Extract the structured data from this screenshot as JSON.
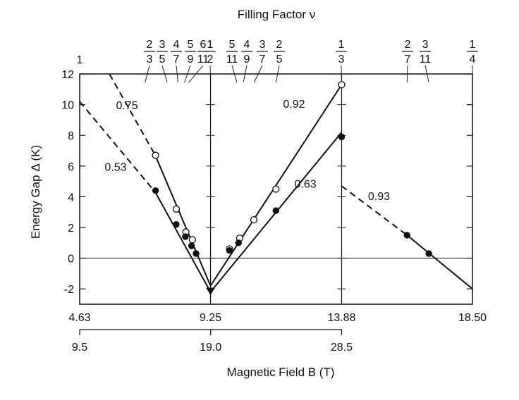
{
  "chart_data": {
    "type": "scatter",
    "title": "Filling Factor ν",
    "ylabel": "Energy Gap  Δ (K)",
    "xlabel": "Magnetic Field  B (T)",
    "ylim": [
      -3,
      12
    ],
    "yticks": [
      "-2",
      "0",
      "2",
      "4",
      "6",
      "8",
      "10",
      "12"
    ],
    "xlim_effective": [
      4.63,
      18.5
    ],
    "effective_axis_ticks": [
      "4.63",
      "9.25",
      "13.88",
      "18.50"
    ],
    "field_axis_ticks": [
      "9.5",
      "19.0",
      "28.5"
    ],
    "field_axis_range": [
      9.5,
      28.5
    ],
    "filling_factors": [
      {
        "num": "",
        "den": "",
        "whole": "1",
        "x": 4.63
      },
      {
        "num": "2",
        "den": "3",
        "x": 6.94
      },
      {
        "num": "3",
        "den": "5",
        "x": 7.72
      },
      {
        "num": "4",
        "den": "7",
        "x": 8.1
      },
      {
        "num": "5",
        "den": "9",
        "x": 8.33
      },
      {
        "num": "6",
        "den": "11",
        "x": 8.48
      },
      {
        "num": "1",
        "den": "2",
        "x": 9.25
      },
      {
        "num": "5",
        "den": "11",
        "x": 10.18
      },
      {
        "num": "4",
        "den": "9",
        "x": 10.41
      },
      {
        "num": "3",
        "den": "7",
        "x": 10.79
      },
      {
        "num": "2",
        "den": "5",
        "x": 11.56
      },
      {
        "num": "1",
        "den": "3",
        "x": 13.88
      },
      {
        "num": "2",
        "den": "7",
        "x": 16.19
      },
      {
        "num": "3",
        "den": "11",
        "x": 16.96
      },
      {
        "num": "1",
        "den": "4",
        "x": 18.5
      }
    ],
    "series": [
      {
        "marker": "open",
        "x": [
          7.31,
          8.04,
          8.38,
          8.61,
          9.92,
          10.28,
          10.78,
          11.56,
          13.88
        ],
        "y": [
          6.7,
          3.2,
          1.7,
          1.2,
          0.6,
          1.3,
          2.5,
          4.5,
          11.3
        ]
      },
      {
        "marker": "filled",
        "x": [
          7.31,
          8.04,
          8.36,
          8.58,
          8.74,
          9.92,
          10.24,
          11.56,
          13.88,
          16.19,
          16.96
        ],
        "y": [
          4.4,
          2.2,
          1.4,
          0.8,
          0.3,
          0.5,
          1.0,
          3.1,
          7.9,
          1.5,
          0.3
        ]
      },
      {
        "marker": "triangle",
        "x": [
          9.25
        ],
        "y": [
          -2.2
        ]
      }
    ],
    "fit_lines": [
      {
        "label": "0.75",
        "style": "dashed",
        "x": [
          5.68,
          7.3
        ],
        "y": [
          12.0,
          6.7
        ]
      },
      {
        "label": "0.75",
        "style": "solid",
        "x": [
          7.3,
          9.25
        ],
        "y": [
          6.7,
          -1.8
        ]
      },
      {
        "label": "0.53",
        "style": "dashed",
        "x": [
          4.63,
          7.3
        ],
        "y": [
          10.2,
          4.3
        ]
      },
      {
        "label": "0.53",
        "style": "solid",
        "x": [
          7.3,
          9.25
        ],
        "y": [
          4.3,
          -2.2
        ]
      },
      {
        "label": "0.92",
        "style": "solid",
        "x": [
          9.25,
          13.88
        ],
        "y": [
          -1.8,
          11.3
        ]
      },
      {
        "label": "0.63",
        "style": "solid",
        "x": [
          9.25,
          13.88
        ],
        "y": [
          -2.2,
          8.2
        ]
      },
      {
        "label": "0.93",
        "style": "dashed",
        "x": [
          13.88,
          16.19
        ],
        "y": [
          4.7,
          1.5
        ]
      },
      {
        "label": "0.93",
        "style": "solid",
        "x": [
          16.19,
          18.5
        ],
        "y": [
          1.5,
          -2.0
        ]
      }
    ],
    "annotations": [
      {
        "text": "0.75",
        "x": 6.3,
        "y": 9.7
      },
      {
        "text": "0.53",
        "x": 5.9,
        "y": 5.7
      },
      {
        "text": "0.92",
        "x": 12.2,
        "y": 9.8
      },
      {
        "text": "0.63",
        "x": 12.6,
        "y": 4.6
      },
      {
        "text": "0.93",
        "x": 15.2,
        "y": 3.8
      }
    ]
  }
}
